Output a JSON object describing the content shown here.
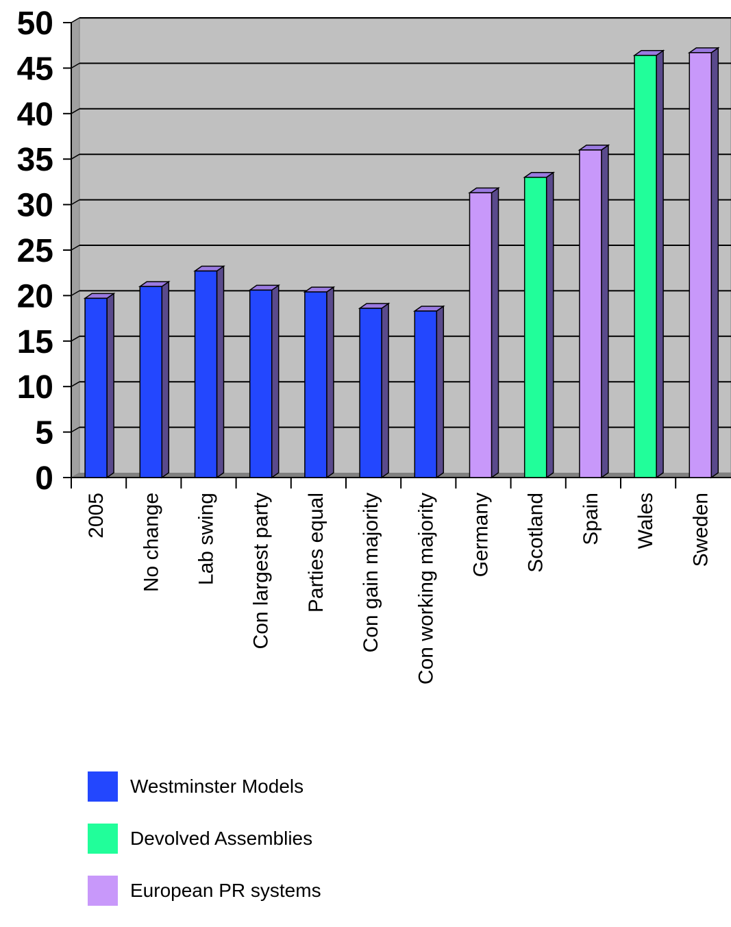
{
  "chart_data": {
    "type": "bar",
    "title": "",
    "xlabel": "",
    "ylabel": "",
    "ylim": [
      0,
      50
    ],
    "yticks": [
      "0",
      "5",
      "10",
      "15",
      "20",
      "25",
      "30",
      "35",
      "40",
      "45",
      "50"
    ],
    "categories": [
      "2005",
      "No change",
      "Lab swing",
      "Con largest party",
      "Parties equal",
      "Con gain majority",
      "Con working majority",
      "Germany",
      "Scotland",
      "Spain",
      "Wales",
      "Sweden"
    ],
    "values": [
      19.7,
      21.0,
      22.7,
      20.6,
      20.4,
      18.6,
      18.3,
      31.3,
      33.0,
      36.0,
      46.4,
      46.7
    ],
    "groups": [
      "westminster",
      "westminster",
      "westminster",
      "westminster",
      "westminster",
      "westminster",
      "westminster",
      "european",
      "devolved",
      "european",
      "devolved",
      "european"
    ],
    "grid": true,
    "legend_position": "bottom-left",
    "legend": [
      {
        "key": "westminster",
        "label": "Westminster Models",
        "color": "#2347fe"
      },
      {
        "key": "devolved",
        "label": "Devolved Assemblies",
        "color": "#21fe9a"
      },
      {
        "key": "european",
        "label": "European PR systems",
        "color": "#c898fa"
      }
    ],
    "background": "#c0c0c0"
  }
}
